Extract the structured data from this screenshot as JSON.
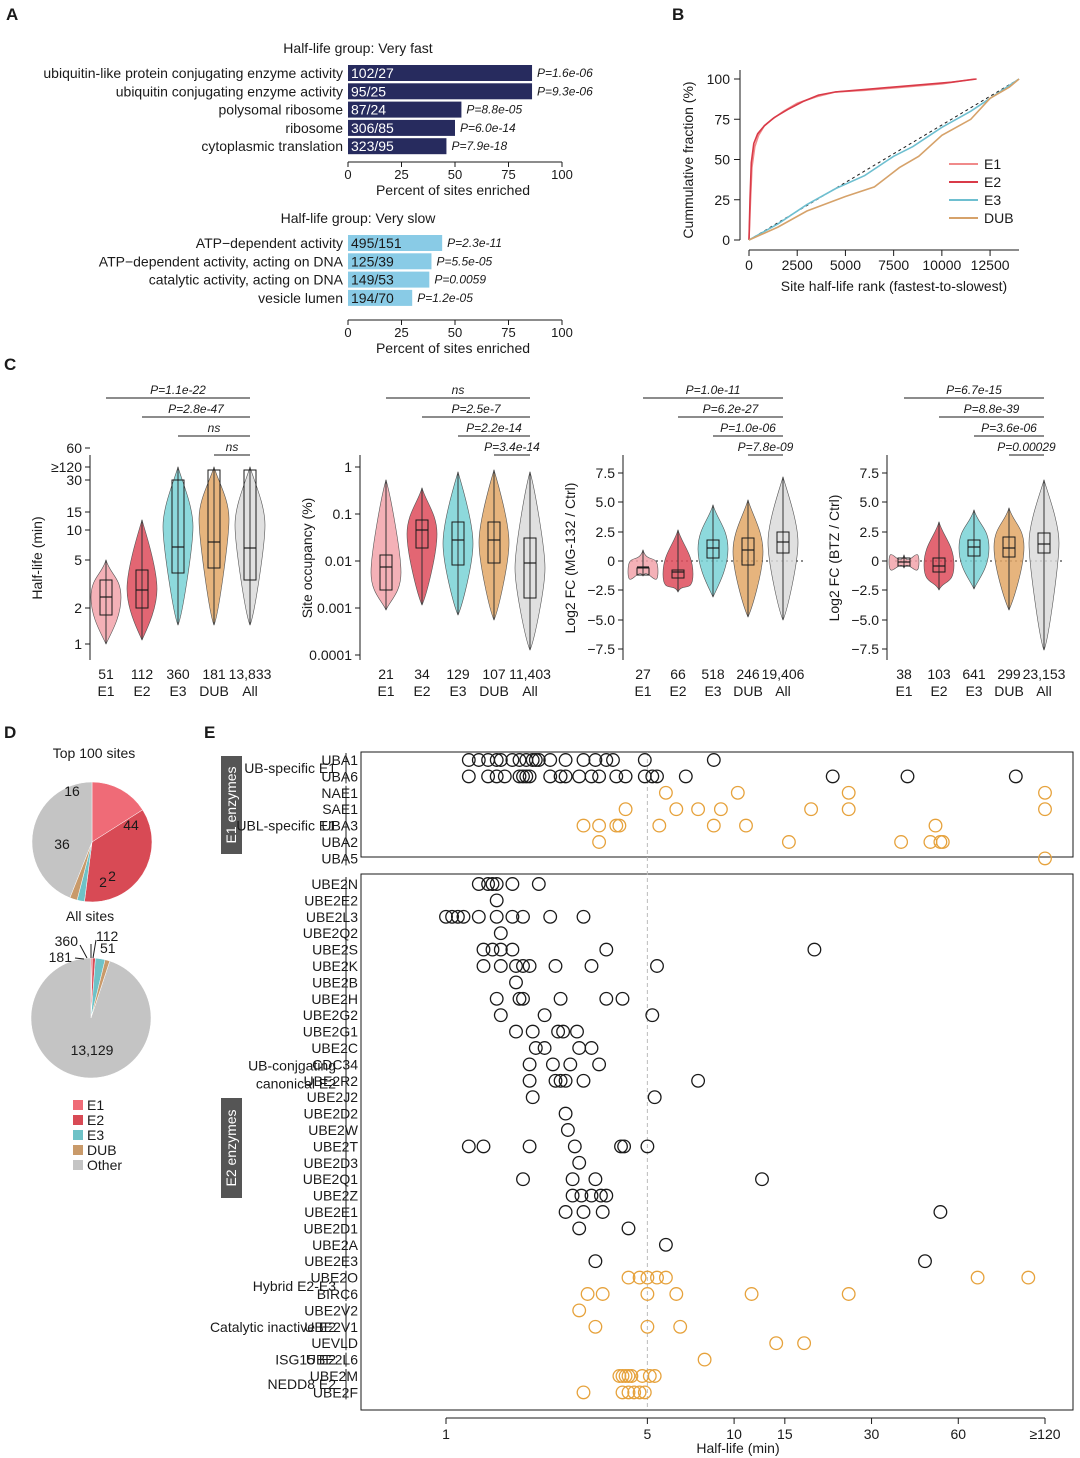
{
  "panels": {
    "A": {
      "label": "A",
      "xlabel": "Percent of sites enriched",
      "ticks": [
        "0",
        "25",
        "50",
        "75",
        "100"
      ],
      "colors": {
        "fast": "#272b5e",
        "slow": "#89cbe6"
      },
      "groups": [
        {
          "title": "Half-life group: Very fast",
          "bars": [
            {
              "term": "ubiquitin-like protein conjugating enzyme activity",
              "label": "102/27",
              "p": "P=1.6e-06",
              "value": 86
            },
            {
              "term": "ubiquitin conjugating enzyme activity",
              "label": "95/25",
              "p": "P=9.3e-06",
              "value": 86
            },
            {
              "term": "polysomal ribosome",
              "label": "87/24",
              "p": "P=8.8e-05",
              "value": 53
            },
            {
              "term": "ribosome",
              "label": "306/85",
              "p": "P=6.0e-14",
              "value": 50
            },
            {
              "term": "cytoplasmic translation",
              "label": "323/95",
              "p": "P=7.9e-18",
              "value": 46
            }
          ]
        },
        {
          "title": "Half-life group: Very slow",
          "bars": [
            {
              "term": "ATP−dependent activity",
              "label": "495/151",
              "p": "P=2.3e-11",
              "value": 44
            },
            {
              "term": "ATP−dependent activity, acting on DNA",
              "label": "125/39",
              "p": "P=5.5e-05",
              "value": 39
            },
            {
              "term": "catalytic activity, acting on DNA",
              "label": "149/53",
              "p": "P=0.0059",
              "value": 38
            },
            {
              "term": "vesicle lumen",
              "label": "194/70",
              "p": "P=1.2e-05",
              "value": 30
            }
          ]
        }
      ]
    },
    "B": {
      "label": "B",
      "xlabel": "Site half-life rank (fastest-to-slowest)",
      "ylabel": "Cummulative fraction (%)",
      "xticks": [
        "0",
        "2500",
        "5000",
        "7500",
        "10000",
        "12500"
      ],
      "yticks": [
        "0",
        "25",
        "50",
        "75",
        "100"
      ],
      "legend": [
        "E1",
        "E2",
        "E3",
        "DUB"
      ],
      "colors": [
        "#f08a8a",
        "#d93a48",
        "#6ebfd0",
        "#d6a26a"
      ]
    },
    "C": {
      "label": "C",
      "group_names": [
        "E1",
        "E2",
        "E3",
        "DUB",
        "All"
      ],
      "colors": [
        "#f2a3aa",
        "#de4b5a",
        "#79d2d6",
        "#e2a766",
        "#dadada"
      ],
      "subpanels": [
        {
          "ylabel": "Half-life (min)",
          "yticks": [
            "1",
            "2",
            "5",
            "10",
            "15",
            "30",
            "60",
            "≥120"
          ],
          "counts": [
            "51",
            "112",
            "360",
            "181",
            "13,833"
          ],
          "brackets": [
            "P=1.1e-22",
            "P=2.8e-47",
            "ns",
            "ns"
          ]
        },
        {
          "ylabel": "Site occupancy (%)",
          "yticks": [
            "0.0001",
            "0.001",
            "0.01",
            "0.1",
            "1"
          ],
          "counts": [
            "21",
            "34",
            "129",
            "107",
            "11,403"
          ],
          "brackets": [
            "ns",
            "P=2.5e-7",
            "P=2.2e-14",
            "P=3.4e-14"
          ]
        },
        {
          "ylabel": "Log2 FC (MG-132 / Ctrl)",
          "yticks": [
            "−7.5",
            "−5.0",
            "−2.5",
            "0",
            "2.5",
            "5.0",
            "7.5"
          ],
          "counts": [
            "27",
            "66",
            "518",
            "246",
            "19,406"
          ],
          "brackets": [
            "P=1.0e-11",
            "P=6.2e-27",
            "P=1.0e-06",
            "P=7.8e-09"
          ]
        },
        {
          "ylabel": "Log2 FC (BTZ / Ctrl)",
          "yticks": [
            "−7.5",
            "−5.0",
            "−2.5",
            "0",
            "2.5",
            "5.0",
            "7.5"
          ],
          "counts": [
            "38",
            "103",
            "641",
            "299",
            "23,153"
          ],
          "brackets": [
            "P=6.7e-15",
            "P=8.8e-39",
            "P=3.6e-06",
            "P=0.00029"
          ]
        }
      ]
    },
    "D": {
      "label": "D",
      "top_title": "Top 100 sites",
      "top_values": [
        "16",
        "36",
        "2",
        "2",
        "44"
      ],
      "all_title": "All sites",
      "all_values": [
        "51",
        "112",
        "360",
        "181",
        "13,129"
      ],
      "legend": [
        "E1",
        "E2",
        "E3",
        "DUB",
        "Other"
      ],
      "colors": [
        "#ef6b77",
        "#d84a55",
        "#6ec2c7",
        "#c99a6a",
        "#c4c4c4"
      ]
    },
    "E": {
      "label": "E",
      "xlabel": "Half-life (min)",
      "xticks": [
        "1",
        "5",
        "10",
        "15",
        "30",
        "60",
        "≥120"
      ],
      "e1_side": "E1 enzymes",
      "e2_side": "E2 enzymes",
      "e1_groups": [
        {
          "name": "UB-specific E1",
          "color": "#1a1a1a",
          "rows": [
            {
              "name": "UBA1",
              "values": [
                1.2,
                1.3,
                1.4,
                1.5,
                1.55,
                1.7,
                1.8,
                1.9,
                2.0,
                2.05,
                2.1,
                2.3,
                2.6,
                3.0,
                3.3,
                3.6,
                3.8,
                4.9,
                8.5
              ]
            },
            {
              "name": "UBA6",
              "values": [
                1.2,
                1.4,
                1.5,
                1.6,
                1.8,
                1.85,
                1.9,
                1.95,
                2.3,
                2.5,
                2.6,
                2.9,
                3.2,
                3.4,
                3.9,
                4.2,
                4.9,
                5.2,
                5.4,
                6.8,
                22,
                40,
                95
              ]
            }
          ]
        },
        {
          "name": "UBL-specific E1",
          "color": "#e6a23c",
          "rows": [
            {
              "name": "NAE1",
              "values": [
                5.8,
                10.3,
                25,
                120
              ]
            },
            {
              "name": "SAE1",
              "values": [
                4.2,
                6.3,
                7.5,
                9.0,
                18.5,
                25,
                120
              ]
            },
            {
              "name": "UBA3",
              "values": [
                3.0,
                3.4,
                3.9,
                4.0,
                5.5,
                8.5,
                11.0,
                50
              ]
            },
            {
              "name": "UBA2",
              "values": [
                3.4,
                15.5,
                38,
                48,
                52,
                53
              ]
            },
            {
              "name": "UBA5",
              "values": [
                120
              ]
            }
          ]
        }
      ],
      "e2_groups": [
        {
          "name": "UB-conjgating canonical E2",
          "color": "#1a1a1a",
          "rows": [
            {
              "name": "UBE2N",
              "values": [
                1.3,
                1.4,
                1.45,
                1.5,
                1.7,
                2.1
              ]
            },
            {
              "name": "UBE2E2",
              "values": [
                1.5
              ]
            },
            {
              "name": "UBE2L3",
              "values": [
                1.0,
                1.05,
                1.1,
                1.15,
                1.3,
                1.5,
                1.7,
                1.85,
                2.3,
                3.0
              ]
            },
            {
              "name": "UBE2Q2",
              "values": [
                1.55
              ]
            },
            {
              "name": "UBE2S",
              "values": [
                1.35,
                1.45,
                1.55,
                1.7,
                3.6,
                19
              ]
            },
            {
              "name": "UBE2K",
              "values": [
                1.35,
                1.55,
                1.75,
                1.85,
                1.95,
                2.4,
                3.2,
                5.4
              ]
            },
            {
              "name": "UBE2B",
              "values": [
                1.75
              ]
            },
            {
              "name": "UBE2H",
              "values": [
                1.5,
                1.8,
                1.85,
                2.5,
                3.6,
                4.1
              ]
            },
            {
              "name": "UBE2G2",
              "values": [
                1.55,
                2.2,
                5.2
              ]
            },
            {
              "name": "UBE2G1",
              "values": [
                1.75,
                2.0,
                2.45,
                2.55,
                2.85
              ]
            },
            {
              "name": "UBE2C",
              "values": [
                2.05,
                2.2,
                2.9,
                3.2
              ]
            },
            {
              "name": "CDC34",
              "values": [
                1.95,
                2.35,
                2.7,
                3.4
              ]
            },
            {
              "name": "UBE2R2",
              "values": [
                1.95,
                2.4,
                2.5,
                2.6,
                3.0,
                7.5
              ]
            },
            {
              "name": "UBE2J2",
              "values": [
                2.0,
                5.3
              ]
            },
            {
              "name": "UBE2D2",
              "values": [
                2.6
              ]
            },
            {
              "name": "UBE2W",
              "values": [
                2.65
              ]
            },
            {
              "name": "UBE2T",
              "values": [
                1.2,
                1.35,
                1.95,
                2.8,
                4.05,
                4.15,
                5.0
              ]
            },
            {
              "name": "UBE2D3",
              "values": [
                2.9
              ]
            },
            {
              "name": "UBE2Q1",
              "values": [
                1.85,
                2.75,
                3.3,
                12.5
              ]
            },
            {
              "name": "UBE2Z",
              "values": [
                2.75,
                2.95,
                3.2,
                3.45,
                3.6
              ]
            },
            {
              "name": "UBE2E1",
              "values": [
                2.6,
                3.0,
                3.5,
                52
              ]
            },
            {
              "name": "UBE2D1",
              "values": [
                2.9,
                4.3
              ]
            },
            {
              "name": "UBE2A",
              "values": [
                5.8
              ]
            },
            {
              "name": "UBE2E3",
              "values": [
                3.3,
                46
              ]
            }
          ]
        },
        {
          "name": "Hybrid E2-E3",
          "color": "#e6a23c",
          "rows": [
            {
              "name": "UBE2O",
              "values": [
                4.3,
                4.7,
                5.0,
                5.4,
                5.8,
                70,
                105
              ]
            },
            {
              "name": "BIRC6",
              "values": [
                3.1,
                3.5,
                5.0,
                6.3,
                11.5,
                25
              ]
            }
          ]
        },
        {
          "name": "Catalytic inactive E2",
          "color": "#e6a23c",
          "rows": [
            {
              "name": "UBE2V2",
              "values": [
                2.9
              ]
            },
            {
              "name": "UBE2V1",
              "values": [
                3.3,
                5.0,
                6.5
              ]
            },
            {
              "name": "UEVLD",
              "values": [
                14,
                17.5
              ]
            }
          ]
        },
        {
          "name": "ISG15 E2",
          "color": "#e6a23c",
          "rows": [
            {
              "name": "UBE2L6",
              "values": [
                7.9
              ]
            }
          ]
        },
        {
          "name": "NEDD8 E2",
          "color": "#e6a23c",
          "rows": [
            {
              "name": "UBE2M",
              "values": [
                4.0,
                4.1,
                4.2,
                4.3,
                4.4,
                4.8,
                5.1,
                5.3
              ]
            },
            {
              "name": "UBE2F",
              "values": [
                3.0,
                4.1,
                4.3,
                4.5,
                4.7,
                4.9
              ]
            }
          ]
        }
      ]
    }
  }
}
